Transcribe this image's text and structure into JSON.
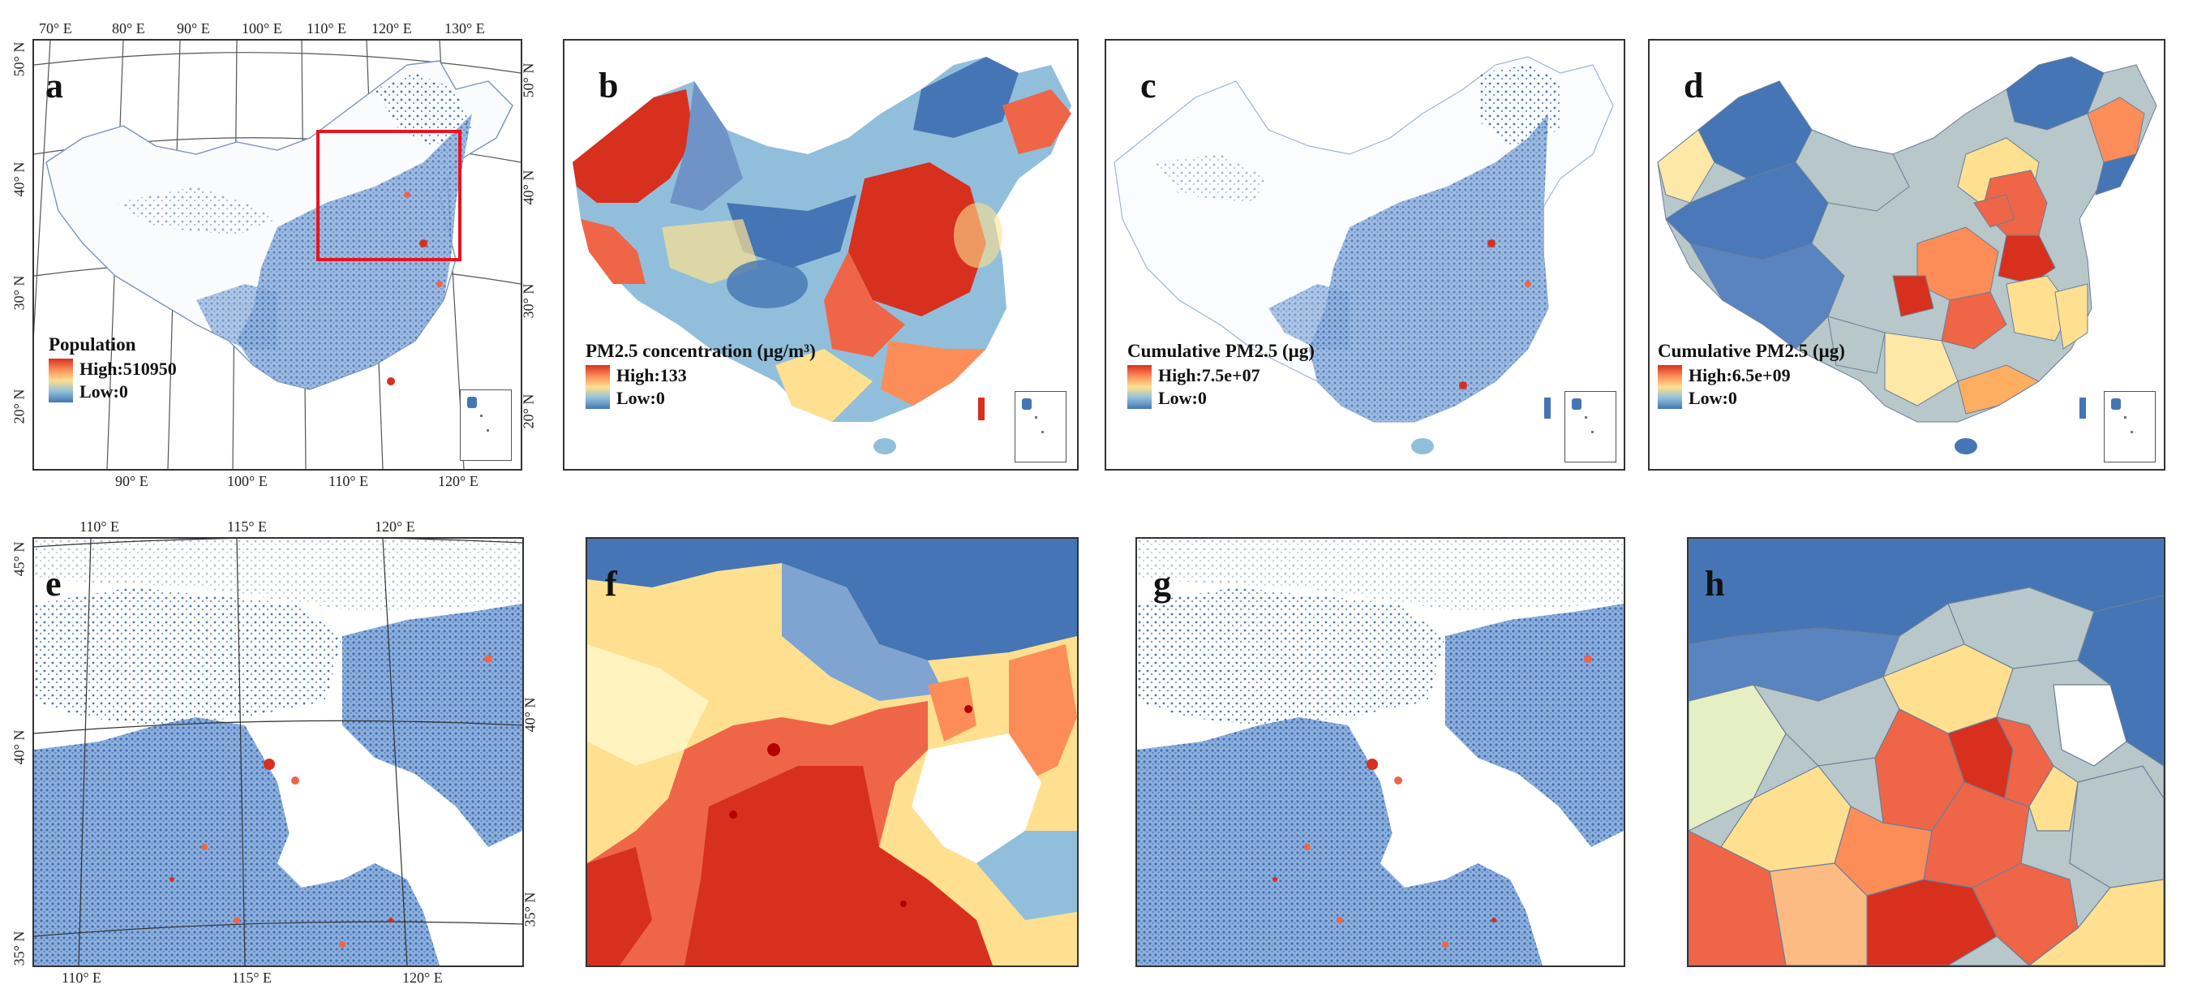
{
  "panels": {
    "a": {
      "letter": "a",
      "legend": {
        "title": "Population",
        "high": "High:510950",
        "low": "Low:0"
      }
    },
    "b": {
      "letter": "b",
      "legend": {
        "title": "PM2.5 concentration (μg/m³)",
        "high": "High:133",
        "low": "Low:0"
      }
    },
    "c": {
      "letter": "c",
      "legend": {
        "title": "Cumulative PM2.5 (μg)",
        "high": "High:7.5e+07",
        "low": "Low:0"
      }
    },
    "d": {
      "letter": "d",
      "legend": {
        "title": "Cumulative PM2.5 (μg)",
        "high": "High:6.5e+09",
        "low": "Low:0"
      }
    },
    "e": {
      "letter": "e"
    },
    "f": {
      "letter": "f"
    },
    "g": {
      "letter": "g"
    },
    "h": {
      "letter": "h"
    }
  },
  "ticks_a": {
    "top": [
      "70° E",
      "80° E",
      "90° E",
      "100° E",
      "110° E",
      "120° E",
      "130° E"
    ],
    "bottom": [
      "90° E",
      "100° E",
      "110° E",
      "120° E"
    ],
    "left": [
      "50° N",
      "40° N",
      "30° N",
      "20° N"
    ],
    "right": [
      "50° N",
      "40° N",
      "30° N",
      "20° N"
    ]
  },
  "ticks_e": {
    "top": [
      "110° E",
      "115° E",
      "120° E"
    ],
    "bottom": [
      "110° E",
      "115° E",
      "120° E"
    ],
    "left": [
      "45° N",
      "40° N",
      "35° N"
    ],
    "right": [
      "40° N",
      "35° N"
    ]
  },
  "colors": {
    "high": "#d7301f",
    "mid_high": "#fc8d59",
    "mid": "#fee090",
    "mid_low": "#91bfdb",
    "low": "#4575b4",
    "highlight_box": "#e8141e",
    "border": "#333333"
  }
}
